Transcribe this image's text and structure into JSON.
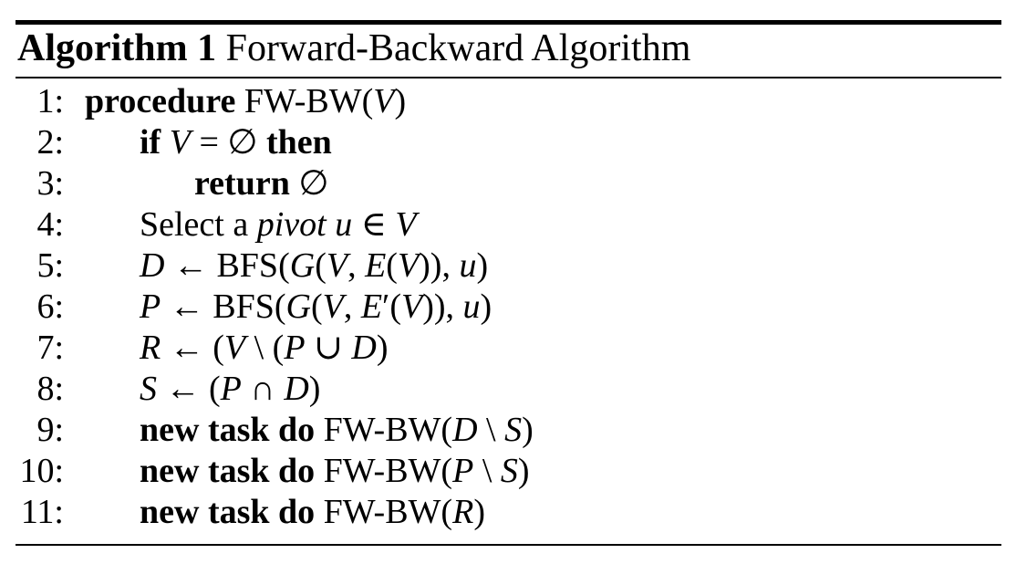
{
  "algorithm": {
    "label": "Algorithm 1",
    "title": "Forward-Backward Algorithm"
  },
  "lines": [
    {
      "num": "1:",
      "indent": 0,
      "segments": [
        {
          "t": "procedure",
          "s": "kw"
        },
        {
          "t": " FW-BW(",
          "s": "rm"
        },
        {
          "t": "V",
          "s": "mi"
        },
        {
          "t": ")",
          "s": "rm"
        }
      ]
    },
    {
      "num": "2:",
      "indent": 1,
      "segments": [
        {
          "t": "if",
          "s": "kw"
        },
        {
          "t": " ",
          "s": "rm"
        },
        {
          "t": "V",
          "s": "mi"
        },
        {
          "t": " = ∅ ",
          "s": "rm"
        },
        {
          "t": "then",
          "s": "kw"
        }
      ]
    },
    {
      "num": "3:",
      "indent": 2,
      "segments": [
        {
          "t": "return",
          "s": "kw"
        },
        {
          "t": " ∅",
          "s": "rm"
        }
      ]
    },
    {
      "num": "4:",
      "indent": 1,
      "segments": [
        {
          "t": "Select a ",
          "s": "rm"
        },
        {
          "t": "pivot",
          "s": "mi"
        },
        {
          "t": " ",
          "s": "rm"
        },
        {
          "t": "u",
          "s": "mi"
        },
        {
          "t": " ∈ ",
          "s": "rm"
        },
        {
          "t": "V",
          "s": "mi"
        }
      ]
    },
    {
      "num": "5:",
      "indent": 1,
      "segments": [
        {
          "t": "D",
          "s": "mi"
        },
        {
          "t": " ← BFS(",
          "s": "rm"
        },
        {
          "t": "G",
          "s": "mi"
        },
        {
          "t": "(",
          "s": "rm"
        },
        {
          "t": "V",
          "s": "mi"
        },
        {
          "t": ", ",
          "s": "rm"
        },
        {
          "t": "E",
          "s": "mi"
        },
        {
          "t": "(",
          "s": "rm"
        },
        {
          "t": "V",
          "s": "mi"
        },
        {
          "t": ")), ",
          "s": "rm"
        },
        {
          "t": "u",
          "s": "mi"
        },
        {
          "t": ")",
          "s": "rm"
        }
      ]
    },
    {
      "num": "6:",
      "indent": 1,
      "segments": [
        {
          "t": "P",
          "s": "mi"
        },
        {
          "t": " ← BFS(",
          "s": "rm"
        },
        {
          "t": "G",
          "s": "mi"
        },
        {
          "t": "(",
          "s": "rm"
        },
        {
          "t": "V",
          "s": "mi"
        },
        {
          "t": ", ",
          "s": "rm"
        },
        {
          "t": "E",
          "s": "mi"
        },
        {
          "t": "′(",
          "s": "rm"
        },
        {
          "t": "V",
          "s": "mi"
        },
        {
          "t": ")), ",
          "s": "rm"
        },
        {
          "t": "u",
          "s": "mi"
        },
        {
          "t": ")",
          "s": "rm"
        }
      ]
    },
    {
      "num": "7:",
      "indent": 1,
      "segments": [
        {
          "t": "R",
          "s": "mi"
        },
        {
          "t": " ← (",
          "s": "rm"
        },
        {
          "t": "V",
          "s": "mi"
        },
        {
          "t": " \\ (",
          "s": "rm"
        },
        {
          "t": "P",
          "s": "mi"
        },
        {
          "t": " ∪ ",
          "s": "rm"
        },
        {
          "t": "D",
          "s": "mi"
        },
        {
          "t": ")",
          "s": "rm"
        }
      ]
    },
    {
      "num": "8:",
      "indent": 1,
      "segments": [
        {
          "t": "S",
          "s": "mi"
        },
        {
          "t": " ← (",
          "s": "rm"
        },
        {
          "t": "P",
          "s": "mi"
        },
        {
          "t": " ∩ ",
          "s": "rm"
        },
        {
          "t": "D",
          "s": "mi"
        },
        {
          "t": ")",
          "s": "rm"
        }
      ]
    },
    {
      "num": "9:",
      "indent": 1,
      "segments": [
        {
          "t": "new task do",
          "s": "kw"
        },
        {
          "t": " FW-BW(",
          "s": "rm"
        },
        {
          "t": "D",
          "s": "mi"
        },
        {
          "t": " \\ ",
          "s": "rm"
        },
        {
          "t": "S",
          "s": "mi"
        },
        {
          "t": ")",
          "s": "rm"
        }
      ]
    },
    {
      "num": "10:",
      "indent": 1,
      "segments": [
        {
          "t": "new task do",
          "s": "kw"
        },
        {
          "t": " FW-BW(",
          "s": "rm"
        },
        {
          "t": "P",
          "s": "mi"
        },
        {
          "t": " \\ ",
          "s": "rm"
        },
        {
          "t": "S",
          "s": "mi"
        },
        {
          "t": ")",
          "s": "rm"
        }
      ]
    },
    {
      "num": "11:",
      "indent": 1,
      "segments": [
        {
          "t": "new task do",
          "s": "kw"
        },
        {
          "t": " FW-BW(",
          "s": "rm"
        },
        {
          "t": "R",
          "s": "mi"
        },
        {
          "t": ")",
          "s": "rm"
        }
      ]
    }
  ]
}
